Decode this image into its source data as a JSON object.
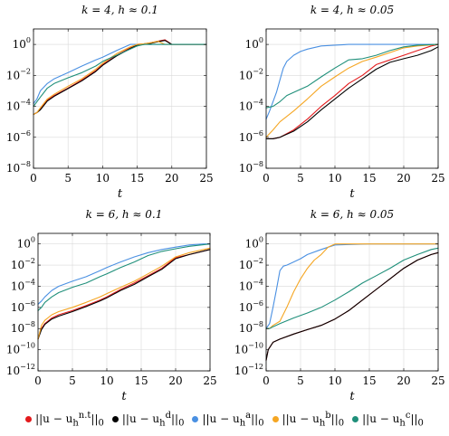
{
  "chart_data": [
    {
      "type": "line",
      "title": "k = 4, h ≈ 0.1",
      "xlabel": "t",
      "ylabel": "",
      "xlim": [
        0,
        25
      ],
      "ylim": [
        1e-08,
        10
      ],
      "yscale": "log",
      "xticks": [
        "0",
        "5",
        "10",
        "15",
        "20",
        "25"
      ],
      "yticks": [
        "10^-8",
        "10^-6",
        "10^-4",
        "10^-2",
        "10^0"
      ],
      "grid": true,
      "series": [
        {
          "key": "nt",
          "x": [
            0,
            0.5,
            1,
            2,
            3,
            5,
            7,
            9,
            10,
            12,
            14,
            15,
            16,
            17,
            18,
            19,
            20,
            22,
            25
          ],
          "y": [
            3e-05,
            4e-05,
            7e-05,
            0.00025,
            0.0005,
            0.0015,
            0.005,
            0.02,
            0.05,
            0.2,
            0.6,
            1,
            1.1,
            1.3,
            1.6,
            2,
            1,
            1,
            1
          ]
        },
        {
          "key": "d",
          "x": [
            0,
            0.5,
            1,
            2,
            3,
            5,
            7,
            9,
            10,
            12,
            14,
            15,
            16,
            17,
            18,
            19,
            20,
            22,
            25
          ],
          "y": [
            3e-05,
            4e-05,
            6e-05,
            0.00022,
            0.00045,
            0.0014,
            0.0045,
            0.018,
            0.045,
            0.18,
            0.55,
            0.9,
            1.0,
            1.2,
            1.5,
            1.8,
            1,
            1,
            1
          ]
        },
        {
          "key": "a",
          "x": [
            0,
            0.5,
            1,
            2,
            3,
            5,
            7,
            9,
            10,
            12,
            14,
            15,
            16,
            18,
            20,
            22,
            25
          ],
          "y": [
            0.00015,
            0.0003,
            0.001,
            0.003,
            0.006,
            0.015,
            0.04,
            0.1,
            0.15,
            0.4,
            1,
            1,
            1,
            1,
            1,
            1,
            1
          ]
        },
        {
          "key": "b",
          "x": [
            0,
            0.5,
            1,
            2,
            3,
            5,
            7,
            9,
            10,
            12,
            14,
            15,
            16,
            17,
            18,
            19,
            20,
            22,
            25
          ],
          "y": [
            3e-05,
            4e-05,
            8e-05,
            0.0003,
            0.0006,
            0.002,
            0.006,
            0.025,
            0.06,
            0.25,
            0.7,
            1,
            1.1,
            1.3,
            1.6,
            1,
            1,
            1,
            1
          ]
        },
        {
          "key": "c",
          "x": [
            0,
            0.5,
            1,
            2,
            3,
            5,
            7,
            9,
            10,
            12,
            14,
            15,
            16,
            17,
            18,
            19,
            20,
            22,
            25
          ],
          "y": [
            0.0001,
            0.0002,
            0.0004,
            0.0015,
            0.003,
            0.007,
            0.015,
            0.04,
            0.08,
            0.2,
            0.5,
            0.8,
            1,
            1,
            1,
            1,
            1,
            1,
            1
          ]
        }
      ]
    },
    {
      "type": "line",
      "title": "k = 4, h ≈ 0.05",
      "xlabel": "t",
      "ylabel": "",
      "xlim": [
        0,
        25
      ],
      "ylim": [
        1e-08,
        10
      ],
      "yscale": "log",
      "xticks": [
        "0",
        "5",
        "10",
        "15",
        "20",
        "25"
      ],
      "yticks": [
        "10^-8",
        "10^-6",
        "10^-4",
        "10^-2",
        "10^0"
      ],
      "grid": true,
      "series": [
        {
          "key": "nt",
          "x": [
            0,
            1,
            2,
            4,
            6,
            8,
            10,
            12,
            14,
            16,
            18,
            20,
            22,
            24,
            25
          ],
          "y": [
            8e-07,
            8e-07,
            1e-06,
            3e-06,
            1.5e-05,
            0.0001,
            0.0005,
            0.003,
            0.01,
            0.05,
            0.1,
            0.2,
            0.4,
            0.8,
            1
          ]
        },
        {
          "key": "d",
          "x": [
            0,
            1,
            2,
            4,
            6,
            8,
            10,
            12,
            14,
            16,
            18,
            20,
            22,
            24,
            25
          ],
          "y": [
            8e-07,
            8e-07,
            1e-06,
            2.5e-06,
            1e-05,
            6e-05,
            0.0003,
            0.0015,
            0.006,
            0.025,
            0.07,
            0.12,
            0.2,
            0.4,
            0.7
          ]
        },
        {
          "key": "a",
          "x": [
            0,
            0.5,
            1,
            1.5,
            2,
            2.5,
            3,
            4,
            5,
            6,
            8,
            10,
            12,
            15,
            20,
            25
          ],
          "y": [
            1.5e-05,
            5e-05,
            0.0002,
            0.0008,
            0.005,
            0.03,
            0.08,
            0.2,
            0.35,
            0.5,
            0.8,
            0.9,
            1,
            1,
            1,
            1
          ]
        },
        {
          "key": "b",
          "x": [
            0,
            1,
            2,
            4,
            6,
            8,
            10,
            12,
            14,
            16,
            18,
            20,
            22,
            25
          ],
          "y": [
            1e-06,
            3e-06,
            1e-05,
            5e-05,
            0.0003,
            0.002,
            0.008,
            0.03,
            0.08,
            0.15,
            0.3,
            0.6,
            0.8,
            1
          ]
        },
        {
          "key": "c",
          "x": [
            0,
            1,
            2,
            3,
            4,
            6,
            8,
            10,
            12,
            14,
            16,
            18,
            20,
            22,
            25
          ],
          "y": [
            8e-05,
            0.0001,
            0.0002,
            0.0005,
            0.0008,
            0.002,
            0.008,
            0.03,
            0.1,
            0.12,
            0.2,
            0.4,
            0.7,
            0.9,
            1
          ]
        }
      ]
    },
    {
      "type": "line",
      "title": "k = 6, h ≈ 0.1",
      "xlabel": "t",
      "ylabel": "",
      "xlim": [
        0,
        25
      ],
      "ylim": [
        1e-12,
        10
      ],
      "yscale": "log",
      "xticks": [
        "0",
        "5",
        "10",
        "15",
        "20",
        "25"
      ],
      "yticks": [
        "10^-12",
        "10^-10",
        "10^-8",
        "10^-6",
        "10^-4",
        "10^-2",
        "10^0"
      ],
      "grid": true,
      "series": [
        {
          "key": "nt",
          "x": [
            0,
            0.5,
            1,
            2,
            3,
            5,
            7,
            9,
            10,
            12,
            14,
            16,
            18,
            20,
            22,
            25
          ],
          "y": [
            1e-09,
            1e-08,
            3e-08,
            1e-07,
            2e-07,
            5e-07,
            1.5e-06,
            5e-06,
            1e-05,
            5e-05,
            0.0002,
            0.001,
            0.005,
            0.05,
            0.1,
            0.3
          ]
        },
        {
          "key": "d",
          "x": [
            0,
            0.5,
            1,
            2,
            3,
            5,
            7,
            9,
            10,
            12,
            14,
            16,
            18,
            20,
            22,
            25
          ],
          "y": [
            1e-09,
            8e-09,
            2.5e-08,
            8e-08,
            1.5e-07,
            4e-07,
            1.2e-06,
            4e-06,
            8e-06,
            4e-05,
            0.00015,
            0.0008,
            0.004,
            0.04,
            0.1,
            0.3
          ]
        },
        {
          "key": "a",
          "x": [
            0,
            0.5,
            1,
            2,
            3,
            5,
            7,
            9,
            10,
            12,
            14,
            16,
            18,
            20,
            22,
            24,
            25
          ],
          "y": [
            2e-06,
            4e-06,
            1e-05,
            4e-05,
            0.0001,
            0.0003,
            0.0008,
            0.003,
            0.006,
            0.02,
            0.06,
            0.15,
            0.3,
            0.5,
            0.8,
            1,
            1
          ]
        },
        {
          "key": "b",
          "x": [
            0,
            0.5,
            1,
            2,
            3,
            5,
            7,
            9,
            10,
            12,
            14,
            16,
            18,
            20,
            22,
            25
          ],
          "y": [
            1e-09,
            2e-08,
            6e-08,
            2e-07,
            4e-07,
            1e-06,
            3e-06,
            1e-05,
            2e-05,
            8e-05,
            0.0003,
            0.0015,
            0.008,
            0.06,
            0.15,
            0.4
          ]
        },
        {
          "key": "c",
          "x": [
            0,
            0.5,
            1,
            2,
            3,
            5,
            7,
            9,
            10,
            12,
            14,
            16,
            18,
            20,
            22,
            25
          ],
          "y": [
            5e-07,
            1e-06,
            3e-06,
            1e-05,
            2.5e-05,
            8e-05,
            0.0002,
            0.0008,
            0.0015,
            0.006,
            0.02,
            0.08,
            0.2,
            0.35,
            0.6,
            1
          ]
        }
      ]
    },
    {
      "type": "line",
      "title": "k = 6, h ≈ 0.05",
      "xlabel": "t",
      "ylabel": "",
      "xlim": [
        0,
        25
      ],
      "ylim": [
        1e-12,
        10
      ],
      "yscale": "log",
      "xticks": [
        "0",
        "5",
        "10",
        "15",
        "20",
        "25"
      ],
      "yticks": [
        "10^-12",
        "10^-10",
        "10^-8",
        "10^-6",
        "10^-4",
        "10^-2",
        "10^0"
      ],
      "grid": true,
      "series": [
        {
          "key": "nt",
          "x": [
            0,
            0.3,
            1,
            2,
            4,
            6,
            8,
            10,
            12,
            14,
            16,
            18,
            20,
            22,
            24,
            25
          ],
          "y": [
            1e-11,
            1e-10,
            5e-10,
            1e-09,
            3e-09,
            8e-09,
            2e-08,
            8e-08,
            5e-07,
            5e-06,
            5e-05,
            0.0005,
            0.005,
            0.03,
            0.1,
            0.15
          ]
        },
        {
          "key": "d",
          "x": [
            0,
            0.3,
            1,
            2,
            4,
            6,
            8,
            10,
            12,
            14,
            16,
            18,
            20,
            22,
            24,
            25
          ],
          "y": [
            1e-11,
            1e-10,
            5e-10,
            1e-09,
            3e-09,
            8e-09,
            2e-08,
            8e-08,
            5e-07,
            5e-06,
            5e-05,
            0.0005,
            0.005,
            0.03,
            0.1,
            0.15
          ]
        },
        {
          "key": "a",
          "x": [
            0,
            0.5,
            1,
            1.5,
            2,
            2.5,
            3,
            4,
            5,
            6,
            8,
            10,
            15,
            20,
            25
          ],
          "y": [
            1e-08,
            3e-08,
            1e-06,
            5e-05,
            0.003,
            0.008,
            0.01,
            0.02,
            0.04,
            0.1,
            0.3,
            0.8,
            1,
            1,
            1
          ]
        },
        {
          "key": "b",
          "x": [
            0,
            0.5,
            1,
            2,
            3,
            4,
            5,
            6,
            7,
            8,
            9,
            10,
            12,
            15,
            20,
            25
          ],
          "y": [
            1e-08,
            1e-08,
            2e-08,
            5e-08,
            1e-06,
            3e-05,
            0.0005,
            0.005,
            0.03,
            0.1,
            0.5,
            1,
            1,
            1,
            1,
            1
          ]
        },
        {
          "key": "c",
          "x": [
            0,
            0.5,
            1,
            2,
            4,
            6,
            8,
            10,
            12,
            14,
            16,
            18,
            20,
            22,
            24,
            25
          ],
          "y": [
            1e-08,
            1e-08,
            1.5e-08,
            3e-08,
            1e-07,
            3e-07,
            1e-06,
            5e-06,
            3e-05,
            0.0002,
            0.001,
            0.005,
            0.03,
            0.1,
            0.3,
            0.4
          ]
        }
      ]
    }
  ],
  "legend": {
    "items": [
      {
        "key": "nt",
        "label": "||u − u_h^{n.t}||_0",
        "base": "||u − u",
        "sub": "h",
        "sup": "n.t",
        "tail": "||",
        "tailsub": "0",
        "color": "#e31a1c"
      },
      {
        "key": "d",
        "label": "||u − u_h^{d}||_0",
        "base": "||u − u",
        "sub": "h",
        "sup": "d",
        "tail": "||",
        "tailsub": "0",
        "color": "#000000"
      },
      {
        "key": "a",
        "label": "||u − u_h^{a}||_0",
        "base": "||u − u",
        "sub": "h",
        "sup": "a",
        "tail": "||",
        "tailsub": "0",
        "color": "#4a90e2"
      },
      {
        "key": "b",
        "label": "||u − u_h^{b}||_0",
        "base": "||u − u",
        "sub": "h",
        "sup": "b",
        "tail": "||",
        "tailsub": "0",
        "color": "#f5a623"
      },
      {
        "key": "c",
        "label": "||u − u_h^{c}||_0",
        "base": "||u − u",
        "sub": "h",
        "sup": "c",
        "tail": "||",
        "tailsub": "0",
        "color": "#1f8f7a"
      }
    ]
  }
}
